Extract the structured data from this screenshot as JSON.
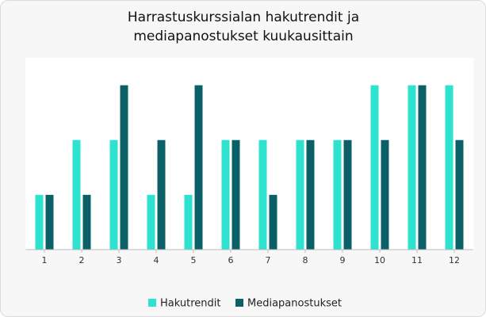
{
  "chart_data": {
    "type": "bar",
    "title": "Harrastuskurssialan hakutrendit ja mediapanostukset kuukausittain",
    "categories": [
      "1",
      "2",
      "3",
      "4",
      "5",
      "6",
      "7",
      "8",
      "9",
      "10",
      "11",
      "12"
    ],
    "series": [
      {
        "name": "Hakutrendit",
        "color": "#2de2cf",
        "values": [
          1,
          2,
          2,
          1,
          1,
          2,
          2,
          2,
          2,
          3,
          3,
          3
        ]
      },
      {
        "name": "Mediapanostukset",
        "color": "#0b6068",
        "values": [
          1,
          1,
          3,
          2,
          3,
          2,
          1,
          2,
          2,
          2,
          3,
          2
        ]
      }
    ],
    "ylim": [
      0,
      3.5
    ]
  }
}
